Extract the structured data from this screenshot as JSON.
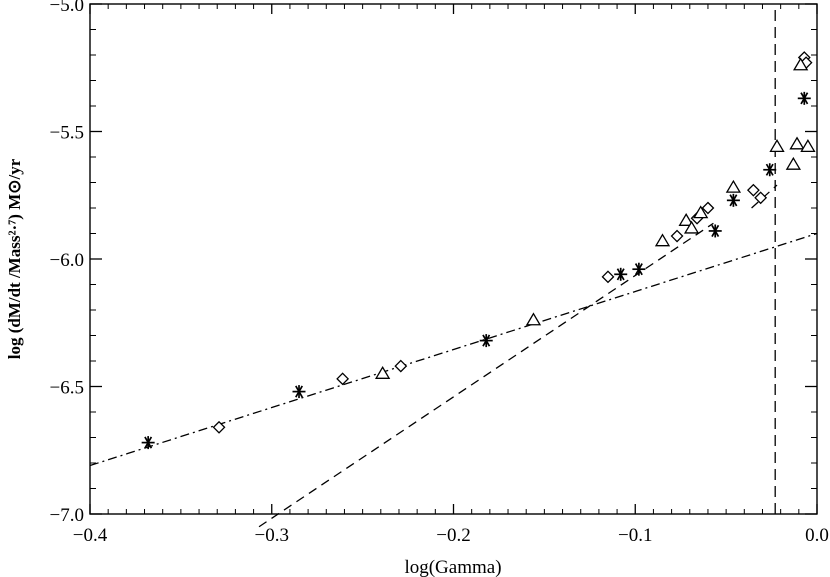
{
  "chart_data": {
    "type": "scatter",
    "xlabel": "log(Gamma)",
    "ylabel": "log (dM/dt  /Mass²·⁷)  M⊙/yr",
    "xlim": [
      -0.4,
      0.0
    ],
    "ylim": [
      -7.0,
      -5.0
    ],
    "xticks": [
      -0.4,
      -0.3,
      -0.2,
      -0.1,
      0.0
    ],
    "xtick_labels": [
      "−0.4",
      "−0.3",
      "−0.2",
      "−0.1",
      "0.0"
    ],
    "yticks": [
      -7.0,
      -6.5,
      -6.0,
      -5.5,
      -5.0
    ],
    "ytick_labels": [
      "−7.0",
      "−6.5",
      "−6.0",
      "−5.5",
      "−5.0"
    ],
    "grid": false,
    "series": [
      {
        "marker": "asterisk",
        "x": [
          -0.368,
          -0.285,
          -0.182,
          -0.108,
          -0.098,
          -0.056,
          -0.046,
          -0.026,
          -0.007
        ],
        "y": [
          -6.72,
          -6.52,
          -6.32,
          -6.06,
          -6.04,
          -5.89,
          -5.77,
          -5.65,
          -5.37
        ]
      },
      {
        "marker": "diamond",
        "x": [
          -0.329,
          -0.261,
          -0.229,
          -0.115,
          -0.077,
          -0.066,
          -0.06,
          -0.035,
          -0.031,
          -0.007,
          -0.006
        ],
        "y": [
          -6.66,
          -6.47,
          -6.42,
          -6.07,
          -5.91,
          -5.84,
          -5.8,
          -5.73,
          -5.76,
          -5.21,
          -5.23
        ]
      },
      {
        "marker": "triangle",
        "x": [
          -0.239,
          -0.156,
          -0.085,
          -0.072,
          -0.069,
          -0.064,
          -0.046,
          -0.022,
          -0.013,
          -0.011,
          -0.009,
          -0.005
        ],
        "y": [
          -6.45,
          -6.24,
          -5.93,
          -5.85,
          -5.88,
          -5.82,
          -5.72,
          -5.56,
          -5.63,
          -5.55,
          -5.24,
          -5.56
        ]
      }
    ],
    "lines": [
      {
        "style": "dash-dot",
        "x": [
          -0.4,
          0.0
        ],
        "y": [
          -6.81,
          -5.9
        ]
      },
      {
        "style": "dashed",
        "x": [
          -0.307,
          -0.057
        ],
        "y": [
          -7.05,
          -5.86
        ]
      },
      {
        "style": "dashed",
        "x": [
          -0.036,
          -0.022
        ],
        "y": [
          -5.8,
          -5.71
        ]
      },
      {
        "style": "dashed-vertical",
        "x": [
          -0.023,
          -0.023
        ],
        "y": [
          -7.0,
          -5.0
        ]
      }
    ]
  }
}
